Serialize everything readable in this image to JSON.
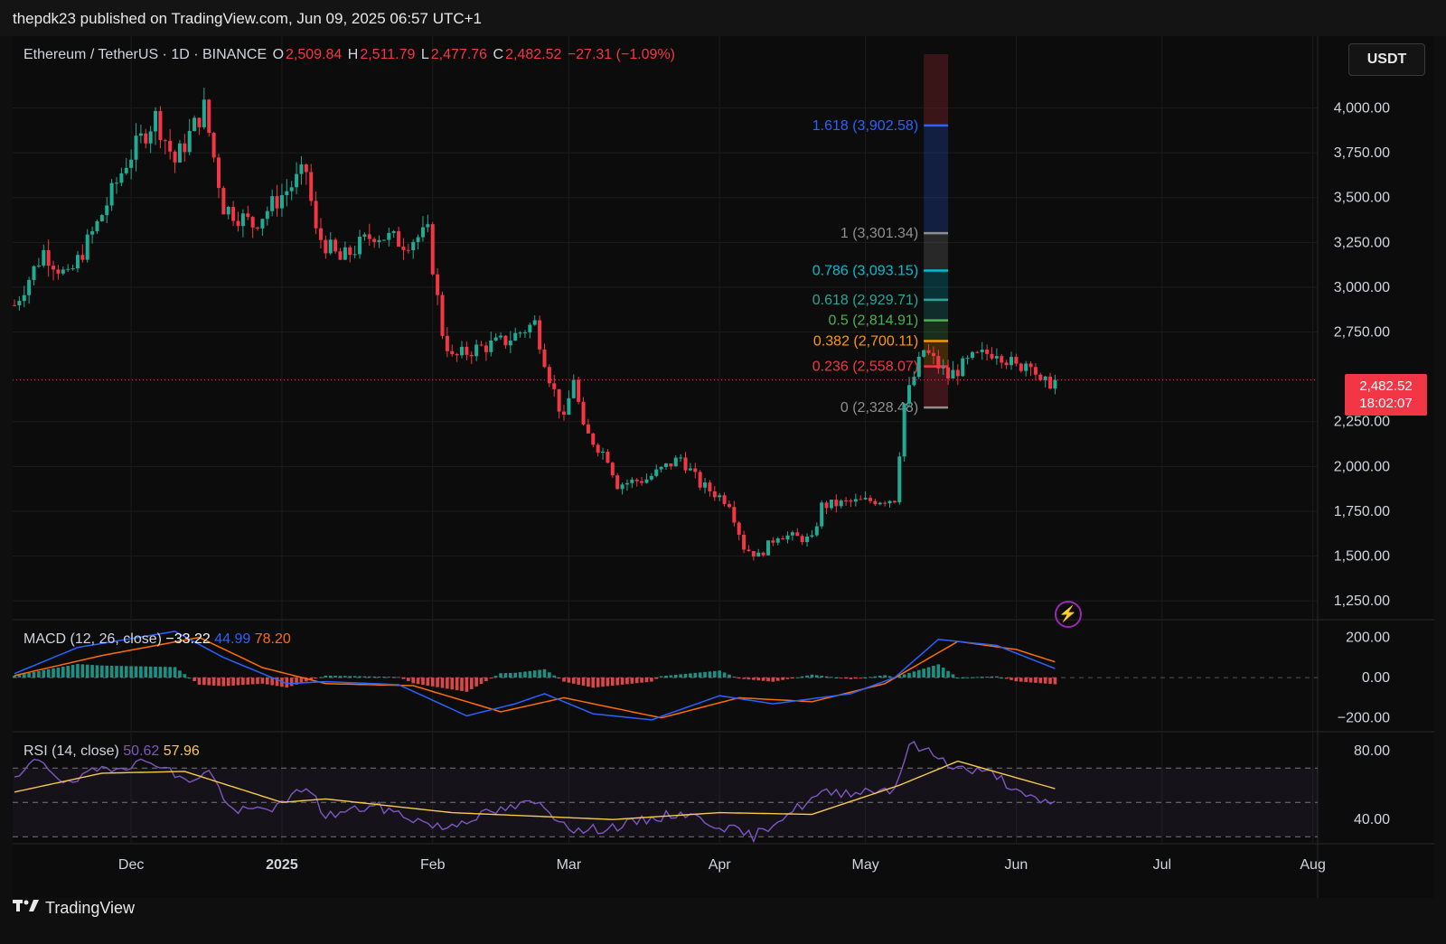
{
  "header": {
    "publisher": "thepdk23 published on TradingView.com, Jun 09, 2025 06:57 UTC+1"
  },
  "legend": {
    "symbol": "Ethereum / TetherUS · 1D · BINANCE",
    "o_label": "O",
    "o_value": "2,509.84",
    "h_label": "H",
    "h_value": "2,511.79",
    "l_label": "L",
    "l_value": "2,477.76",
    "c_label": "C",
    "c_value": "2,482.52",
    "change": "−27.31 (−1.09%)"
  },
  "unit_button": "USDT",
  "last_price": {
    "price": "2,482.52",
    "countdown": "18:02:07"
  },
  "colors": {
    "up": "#22ab94",
    "down": "#f23645",
    "macd_line": "#2962ff",
    "signal_line": "#ff6d00",
    "rsi_line": "#7e57c2",
    "rsi_ma": "#f7c948",
    "background": "#0c0c0c"
  },
  "macd": {
    "label": "MACD (12, 26, close)",
    "hist": "−33.22",
    "macd": "44.99",
    "signal": "78.20"
  },
  "rsi": {
    "label": "RSI (14, close)",
    "value": "50.62",
    "ma": "57.96"
  },
  "footer": {
    "brand": "TradingView",
    "logo_icon": "tradingview-logo-icon"
  },
  "chart_data": [
    {
      "type": "candlestick",
      "title": "Ethereum / TetherUS · 1D · BINANCE",
      "ylim": [
        1150,
        4300
      ],
      "y_ticks": [
        "4,000.00",
        "3,750.00",
        "3,500.00",
        "3,250.00",
        "3,000.00",
        "2,750.00",
        "2,250.00",
        "2,000.00",
        "1,750.00",
        "1,500.00",
        "1,250.00"
      ],
      "y_tick_values": [
        4000,
        3750,
        3500,
        3250,
        3000,
        2750,
        2250,
        2000,
        1750,
        1500,
        1250
      ],
      "x_ticks": [
        "Dec",
        "2025",
        "Feb",
        "Mar",
        "Apr",
        "May",
        "Jun",
        "Jul",
        "Aug"
      ],
      "x_tick_dates": [
        "2024-12-01",
        "2025-01-01",
        "2025-02-01",
        "2025-03-01",
        "2025-04-01",
        "2025-05-01",
        "2025-06-01",
        "2025-07-01",
        "2025-08-01"
      ],
      "x_range": [
        "2024-11-07",
        "2025-08-02"
      ],
      "close_anchors": [
        {
          "date": "2024-11-07",
          "close": 2900
        },
        {
          "date": "2024-11-13",
          "close": 3200
        },
        {
          "date": "2024-11-18",
          "close": 3050
        },
        {
          "date": "2024-11-24",
          "close": 3350
        },
        {
          "date": "2024-11-30",
          "close": 3700
        },
        {
          "date": "2024-12-06",
          "close": 3950
        },
        {
          "date": "2024-12-10",
          "close": 3700
        },
        {
          "date": "2024-12-16",
          "close": 4000
        },
        {
          "date": "2024-12-20",
          "close": 3450
        },
        {
          "date": "2024-12-26",
          "close": 3350
        },
        {
          "date": "2025-01-06",
          "close": 3650
        },
        {
          "date": "2025-01-08",
          "close": 3300
        },
        {
          "date": "2025-01-13",
          "close": 3150
        },
        {
          "date": "2025-01-20",
          "close": 3300
        },
        {
          "date": "2025-01-26",
          "close": 3250
        },
        {
          "date": "2025-01-31",
          "close": 3300
        },
        {
          "date": "2025-02-03",
          "close": 2750
        },
        {
          "date": "2025-02-05",
          "close": 2600
        },
        {
          "date": "2025-02-09",
          "close": 2650
        },
        {
          "date": "2025-02-16",
          "close": 2700
        },
        {
          "date": "2025-02-22",
          "close": 2800
        },
        {
          "date": "2025-02-25",
          "close": 2500
        },
        {
          "date": "2025-02-28",
          "close": 2250
        },
        {
          "date": "2025-03-02",
          "close": 2500
        },
        {
          "date": "2025-03-04",
          "close": 2200
        },
        {
          "date": "2025-03-09",
          "close": 2050
        },
        {
          "date": "2025-03-11",
          "close": 1900
        },
        {
          "date": "2025-03-17",
          "close": 1930
        },
        {
          "date": "2025-03-24",
          "close": 2050
        },
        {
          "date": "2025-03-28",
          "close": 1900
        },
        {
          "date": "2025-04-03",
          "close": 1800
        },
        {
          "date": "2025-04-06",
          "close": 1550
        },
        {
          "date": "2025-04-09",
          "close": 1500
        },
        {
          "date": "2025-04-13",
          "close": 1620
        },
        {
          "date": "2025-04-20",
          "close": 1590
        },
        {
          "date": "2025-04-22",
          "close": 1780
        },
        {
          "date": "2025-04-28",
          "close": 1800
        },
        {
          "date": "2025-05-07",
          "close": 1820
        },
        {
          "date": "2025-05-09",
          "close": 2350
        },
        {
          "date": "2025-05-13",
          "close": 2650
        },
        {
          "date": "2025-05-18",
          "close": 2500
        },
        {
          "date": "2025-05-23",
          "close": 2600
        },
        {
          "date": "2025-05-28",
          "close": 2650
        },
        {
          "date": "2025-06-01",
          "close": 2550
        },
        {
          "date": "2025-06-04",
          "close": 2600
        },
        {
          "date": "2025-06-06",
          "close": 2450
        },
        {
          "date": "2025-06-09",
          "close": 2482.52
        }
      ],
      "current_price": 2482.52,
      "fibonacci": {
        "start_date": "2025-05-13",
        "end_date": "2025-05-18",
        "levels": [
          {
            "ratio": 1.618,
            "price": 3902.58,
            "label": "1.618 (3,902.58)",
            "color": "#2962ff"
          },
          {
            "ratio": 1,
            "price": 3301.34,
            "label": "1 (3,301.34)",
            "color": "#8f8f8f"
          },
          {
            "ratio": 0.786,
            "price": 3093.15,
            "label": "0.786 (3,093.15)",
            "color": "#00bcd4"
          },
          {
            "ratio": 0.618,
            "price": 2929.71,
            "label": "0.618 (2,929.71)",
            "color": "#26a69a"
          },
          {
            "ratio": 0.5,
            "price": 2814.91,
            "label": "0.5 (2,814.91)",
            "color": "#4caf50"
          },
          {
            "ratio": 0.382,
            "price": 2700.11,
            "label": "0.382 (2,700.11)",
            "color": "#ff9800"
          },
          {
            "ratio": 0.236,
            "price": 2558.07,
            "label": "0.236 (2,558.07)",
            "color": "#f23645"
          },
          {
            "ratio": 0,
            "price": 2328.48,
            "label": "0 (2,328.48)",
            "color": "#8f8f8f"
          }
        ]
      }
    },
    {
      "type": "macd",
      "ylim": [
        -260,
        270
      ],
      "y_ticks": [
        "200.00",
        "0.00",
        "−200.00"
      ],
      "y_tick_values": [
        200,
        0,
        -200
      ],
      "macd_anchors": [
        {
          "date": "2024-11-07",
          "v": 20
        },
        {
          "date": "2024-11-20",
          "v": 150
        },
        {
          "date": "2024-12-10",
          "v": 230
        },
        {
          "date": "2024-12-20",
          "v": 100
        },
        {
          "date": "2025-01-02",
          "v": -30
        },
        {
          "date": "2025-01-10",
          "v": -20
        },
        {
          "date": "2025-01-25",
          "v": -35
        },
        {
          "date": "2025-02-08",
          "v": -190
        },
        {
          "date": "2025-02-18",
          "v": -130
        },
        {
          "date": "2025-02-24",
          "v": -80
        },
        {
          "date": "2025-03-06",
          "v": -180
        },
        {
          "date": "2025-03-18",
          "v": -210
        },
        {
          "date": "2025-04-01",
          "v": -90
        },
        {
          "date": "2025-04-12",
          "v": -130
        },
        {
          "date": "2025-04-28",
          "v": -80
        },
        {
          "date": "2025-05-07",
          "v": 0
        },
        {
          "date": "2025-05-16",
          "v": 190
        },
        {
          "date": "2025-05-28",
          "v": 160
        },
        {
          "date": "2025-06-09",
          "v": 44.99
        }
      ],
      "signal_anchors": [
        {
          "date": "2024-11-07",
          "v": 10
        },
        {
          "date": "2024-11-25",
          "v": 110
        },
        {
          "date": "2024-12-15",
          "v": 200
        },
        {
          "date": "2024-12-28",
          "v": 50
        },
        {
          "date": "2025-01-10",
          "v": -30
        },
        {
          "date": "2025-01-28",
          "v": -40
        },
        {
          "date": "2025-02-15",
          "v": -170
        },
        {
          "date": "2025-02-28",
          "v": -100
        },
        {
          "date": "2025-03-20",
          "v": -200
        },
        {
          "date": "2025-04-05",
          "v": -100
        },
        {
          "date": "2025-04-20",
          "v": -120
        },
        {
          "date": "2025-05-05",
          "v": -30
        },
        {
          "date": "2025-05-20",
          "v": 180
        },
        {
          "date": "2025-06-01",
          "v": 140
        },
        {
          "date": "2025-06-09",
          "v": 78.2
        }
      ],
      "current_hist": -33.22
    },
    {
      "type": "rsi",
      "ylim": [
        28,
        88
      ],
      "y_ticks": [
        "80.00",
        "40.00"
      ],
      "y_tick_values": [
        80,
        40
      ],
      "band": [
        30,
        70
      ],
      "mid": 50,
      "rsi_anchors": [
        {
          "date": "2024-11-07",
          "v": 62
        },
        {
          "date": "2024-11-12",
          "v": 76
        },
        {
          "date": "2024-11-18",
          "v": 60
        },
        {
          "date": "2024-11-25",
          "v": 70
        },
        {
          "date": "2024-12-06",
          "v": 74
        },
        {
          "date": "2024-12-12",
          "v": 62
        },
        {
          "date": "2024-12-17",
          "v": 68
        },
        {
          "date": "2024-12-22",
          "v": 44
        },
        {
          "date": "2025-01-01",
          "v": 48
        },
        {
          "date": "2025-01-06",
          "v": 60
        },
        {
          "date": "2025-01-10",
          "v": 42
        },
        {
          "date": "2025-01-20",
          "v": 48
        },
        {
          "date": "2025-02-03",
          "v": 35
        },
        {
          "date": "2025-02-10",
          "v": 42
        },
        {
          "date": "2025-02-22",
          "v": 50
        },
        {
          "date": "2025-03-03",
          "v": 33
        },
        {
          "date": "2025-03-11",
          "v": 36
        },
        {
          "date": "2025-03-24",
          "v": 44
        },
        {
          "date": "2025-04-08",
          "v": 30
        },
        {
          "date": "2025-04-13",
          "v": 40
        },
        {
          "date": "2025-04-22",
          "v": 55
        },
        {
          "date": "2025-05-07",
          "v": 58
        },
        {
          "date": "2025-05-10",
          "v": 84
        },
        {
          "date": "2025-05-15",
          "v": 78
        },
        {
          "date": "2025-05-20",
          "v": 70
        },
        {
          "date": "2025-05-28",
          "v": 66
        },
        {
          "date": "2025-06-02",
          "v": 54
        },
        {
          "date": "2025-06-06",
          "v": 50
        },
        {
          "date": "2025-06-09",
          "v": 50.62
        }
      ],
      "ma_anchors": [
        {
          "date": "2024-11-07",
          "v": 56
        },
        {
          "date": "2024-11-25",
          "v": 67
        },
        {
          "date": "2024-12-12",
          "v": 68
        },
        {
          "date": "2025-01-01",
          "v": 50
        },
        {
          "date": "2025-01-10",
          "v": 52
        },
        {
          "date": "2025-02-05",
          "v": 44
        },
        {
          "date": "2025-03-10",
          "v": 40
        },
        {
          "date": "2025-04-01",
          "v": 44
        },
        {
          "date": "2025-04-20",
          "v": 43
        },
        {
          "date": "2025-05-08",
          "v": 60
        },
        {
          "date": "2025-05-20",
          "v": 74
        },
        {
          "date": "2025-05-30",
          "v": 66
        },
        {
          "date": "2025-06-09",
          "v": 57.96
        }
      ]
    }
  ]
}
